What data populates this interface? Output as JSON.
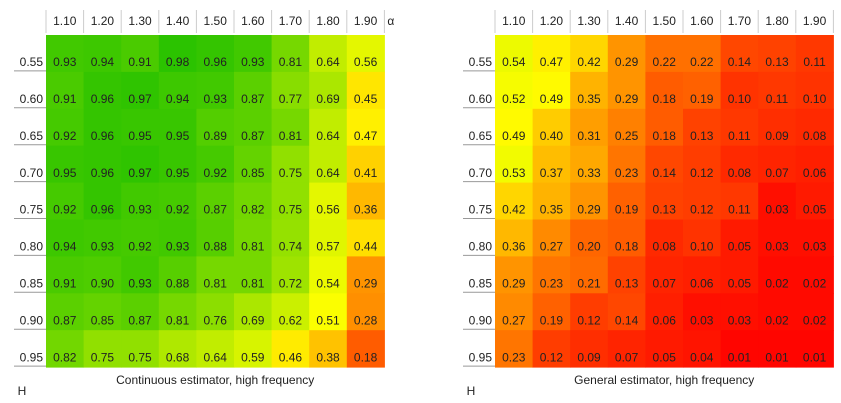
{
  "chart_data": [
    {
      "type": "heatmap",
      "title": "Continuous estimator, high frequency",
      "xlabel": "α",
      "ylabel": "H",
      "x": [
        "1.10",
        "1.20",
        "1.30",
        "1.40",
        "1.50",
        "1.60",
        "1.70",
        "1.80",
        "1.90"
      ],
      "y": [
        "0.55",
        "0.60",
        "0.65",
        "0.70",
        "0.75",
        "0.80",
        "0.85",
        "0.90",
        "0.95"
      ],
      "values": [
        [
          0.93,
          0.94,
          0.91,
          0.98,
          0.96,
          0.93,
          0.81,
          0.64,
          0.56
        ],
        [
          0.91,
          0.96,
          0.97,
          0.94,
          0.93,
          0.87,
          0.77,
          0.69,
          0.45
        ],
        [
          0.92,
          0.96,
          0.95,
          0.95,
          0.89,
          0.87,
          0.81,
          0.64,
          0.47
        ],
        [
          0.95,
          0.96,
          0.97,
          0.95,
          0.92,
          0.85,
          0.75,
          0.64,
          0.41
        ],
        [
          0.92,
          0.96,
          0.93,
          0.92,
          0.87,
          0.82,
          0.75,
          0.56,
          0.36
        ],
        [
          0.94,
          0.93,
          0.92,
          0.93,
          0.88,
          0.81,
          0.74,
          0.57,
          0.44
        ],
        [
          0.91,
          0.9,
          0.93,
          0.88,
          0.81,
          0.81,
          0.72,
          0.54,
          0.29
        ],
        [
          0.87,
          0.85,
          0.87,
          0.81,
          0.76,
          0.69,
          0.62,
          0.51,
          0.28
        ],
        [
          0.82,
          0.75,
          0.75,
          0.68,
          0.64,
          0.59,
          0.46,
          0.38,
          0.18
        ]
      ],
      "value_labels": [
        [
          "0.93",
          "0.94",
          "0.91",
          "0.98",
          "0.96",
          "0.93",
          "0.81",
          "0.64",
          "0.56"
        ],
        [
          "0.91",
          "0.96",
          "0.97",
          "0.94",
          "0.93",
          "0.87",
          "0.77",
          "0.69",
          "0.45"
        ],
        [
          "0.92",
          "0.96",
          "0.95",
          "0.95",
          "0.89",
          "0.87",
          "0.81",
          "0.64",
          "0.47"
        ],
        [
          "0.95",
          "0.96",
          "0.97",
          "0.95",
          "0.92",
          "0.85",
          "0.75",
          "0.64",
          "0.41"
        ],
        [
          "0.92",
          "0.96",
          "0.93",
          "0.92",
          "0.87",
          "0.82",
          "0.75",
          "0.56",
          "0.36"
        ],
        [
          "0.94",
          "0.93",
          "0.92",
          "0.93",
          "0.88",
          "0.81",
          "0.74",
          "0.57",
          "0.44"
        ],
        [
          "0.91",
          "0.90",
          "0.93",
          "0.88",
          "0.81",
          "0.81",
          "0.72",
          "0.54",
          "0.29"
        ],
        [
          "0.87",
          "0.85",
          "0.87",
          "0.81",
          "0.76",
          "0.69",
          "0.62",
          "0.51",
          "0.28"
        ],
        [
          "0.82",
          "0.75",
          "0.75",
          "0.68",
          "0.64",
          "0.59",
          "0.46",
          "0.38",
          "0.18"
        ]
      ],
      "colorscale": [
        {
          "value": 0,
          "color": "#ff0000"
        },
        {
          "value": 0.5,
          "color": "#ffff00"
        },
        {
          "value": 1,
          "color": "#22c000"
        }
      ]
    },
    {
      "type": "heatmap",
      "title": "General estimator, high frequency",
      "ylabel": "H",
      "x": [
        "1.10",
        "1.20",
        "1.30",
        "1.40",
        "1.50",
        "1.60",
        "1.70",
        "1.80",
        "1.90"
      ],
      "y": [
        "0.55",
        "0.60",
        "0.65",
        "0.70",
        "0.75",
        "0.80",
        "0.85",
        "0.90",
        "0.95"
      ],
      "values": [
        [
          0.54,
          0.47,
          0.42,
          0.29,
          0.22,
          0.22,
          0.14,
          0.13,
          0.11
        ],
        [
          0.52,
          0.49,
          0.35,
          0.29,
          0.18,
          0.19,
          0.1,
          0.11,
          0.1
        ],
        [
          0.49,
          0.4,
          0.31,
          0.25,
          0.18,
          0.13,
          0.11,
          0.09,
          0.08
        ],
        [
          0.53,
          0.37,
          0.33,
          0.23,
          0.14,
          0.12,
          0.08,
          0.07,
          0.06
        ],
        [
          0.42,
          0.35,
          0.29,
          0.19,
          0.13,
          0.12,
          0.11,
          0.03,
          0.05
        ],
        [
          0.36,
          0.27,
          0.2,
          0.18,
          0.08,
          0.1,
          0.05,
          0.03,
          0.03
        ],
        [
          0.29,
          0.23,
          0.21,
          0.13,
          0.07,
          0.06,
          0.05,
          0.02,
          0.02
        ],
        [
          0.27,
          0.19,
          0.12,
          0.14,
          0.06,
          0.03,
          0.03,
          0.02,
          0.02
        ],
        [
          0.23,
          0.12,
          0.09,
          0.07,
          0.05,
          0.04,
          0.01,
          0.01,
          0.01
        ]
      ],
      "value_labels": [
        [
          "0.54",
          "0.47",
          "0.42",
          "0.29",
          "0.22",
          "0.22",
          "0.14",
          "0.13",
          "0.11"
        ],
        [
          "0.52",
          "0.49",
          "0.35",
          "0.29",
          "0.18",
          "0.19",
          "0.10",
          "0.11",
          "0.10"
        ],
        [
          "0.49",
          "0.40",
          "0.31",
          "0.25",
          "0.18",
          "0.13",
          "0.11",
          "0.09",
          "0.08"
        ],
        [
          "0.53",
          "0.37",
          "0.33",
          "0.23",
          "0.14",
          "0.12",
          "0.08",
          "0.07",
          "0.06"
        ],
        [
          "0.42",
          "0.35",
          "0.29",
          "0.19",
          "0.13",
          "0.12",
          "0.11",
          "0.03",
          "0.05"
        ],
        [
          "0.36",
          "0.27",
          "0.20",
          "0.18",
          "0.08",
          "0.10",
          "0.05",
          "0.03",
          "0.03"
        ],
        [
          "0.29",
          "0.23",
          "0.21",
          "0.13",
          "0.07",
          "0.06",
          "0.05",
          "0.02",
          "0.02"
        ],
        [
          "0.27",
          "0.19",
          "0.12",
          "0.14",
          "0.06",
          "0.03",
          "0.03",
          "0.02",
          "0.02"
        ],
        [
          "0.23",
          "0.12",
          "0.09",
          "0.07",
          "0.05",
          "0.04",
          "0.01",
          "0.01",
          "0.01"
        ]
      ],
      "colorscale": [
        {
          "value": 0,
          "color": "#ff0000"
        },
        {
          "value": 0.5,
          "color": "#ffff00"
        },
        {
          "value": 1,
          "color": "#22c000"
        }
      ]
    }
  ]
}
